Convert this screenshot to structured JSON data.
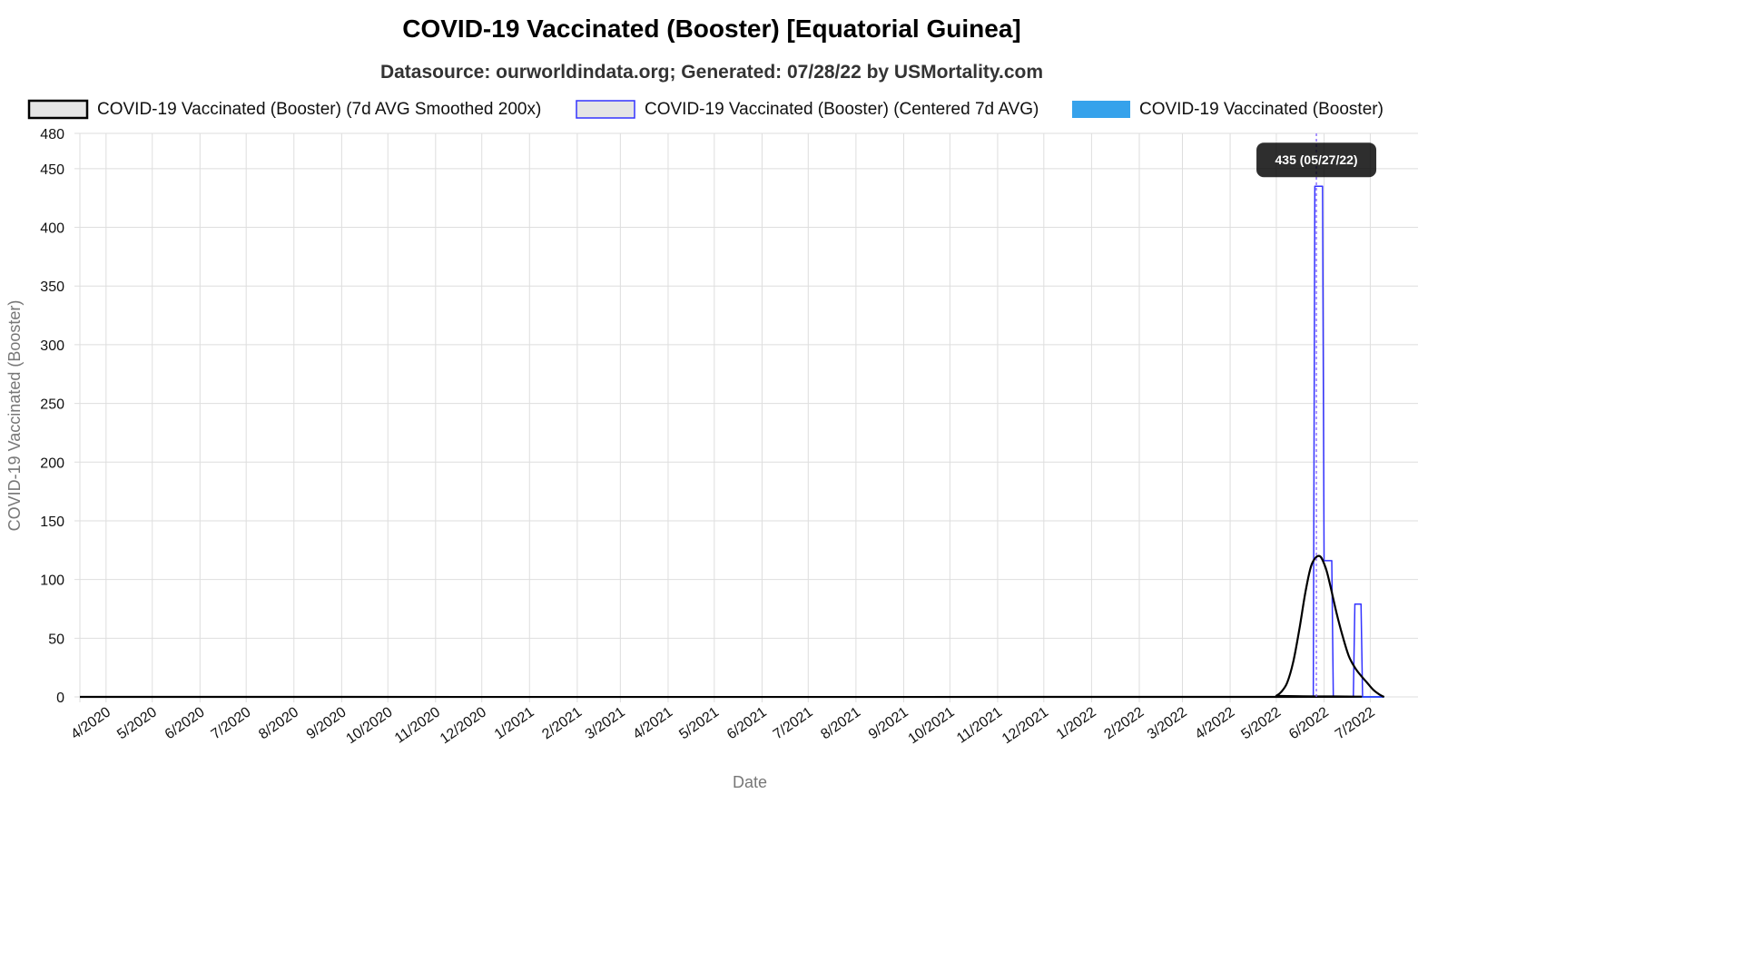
{
  "chart_data": {
    "type": "line",
    "title": "COVID-19 Vaccinated (Booster) [Equatorial Guinea]",
    "subtitle": "Datasource: ourworldindata.org; Generated: 07/28/22 by USMortality.com",
    "xlabel": "Date",
    "ylabel": "COVID-19 Vaccinated (Booster)",
    "ylim": [
      0,
      480
    ],
    "yticks": [
      0,
      50,
      100,
      150,
      200,
      250,
      300,
      350,
      400,
      450,
      480
    ],
    "xlim": [
      "2020-03-15",
      "2022-08-01"
    ],
    "xticks": [
      {
        "date": "2020-04-01",
        "label": "4/2020"
      },
      {
        "date": "2020-05-01",
        "label": "5/2020"
      },
      {
        "date": "2020-06-01",
        "label": "6/2020"
      },
      {
        "date": "2020-07-01",
        "label": "7/2020"
      },
      {
        "date": "2020-08-01",
        "label": "8/2020"
      },
      {
        "date": "2020-09-01",
        "label": "9/2020"
      },
      {
        "date": "2020-10-01",
        "label": "10/2020"
      },
      {
        "date": "2020-11-01",
        "label": "11/2020"
      },
      {
        "date": "2020-12-01",
        "label": "12/2020"
      },
      {
        "date": "2021-01-01",
        "label": "1/2021"
      },
      {
        "date": "2021-02-01",
        "label": "2/2021"
      },
      {
        "date": "2021-03-01",
        "label": "3/2021"
      },
      {
        "date": "2021-04-01",
        "label": "4/2021"
      },
      {
        "date": "2021-05-01",
        "label": "5/2021"
      },
      {
        "date": "2021-06-01",
        "label": "6/2021"
      },
      {
        "date": "2021-07-01",
        "label": "7/2021"
      },
      {
        "date": "2021-08-01",
        "label": "8/2021"
      },
      {
        "date": "2021-09-01",
        "label": "9/2021"
      },
      {
        "date": "2021-10-01",
        "label": "10/2021"
      },
      {
        "date": "2021-11-01",
        "label": "11/2021"
      },
      {
        "date": "2021-12-01",
        "label": "12/2021"
      },
      {
        "date": "2022-01-01",
        "label": "1/2022"
      },
      {
        "date": "2022-02-01",
        "label": "2/2022"
      },
      {
        "date": "2022-03-01",
        "label": "3/2022"
      },
      {
        "date": "2022-04-01",
        "label": "4/2022"
      },
      {
        "date": "2022-05-01",
        "label": "5/2022"
      },
      {
        "date": "2022-06-01",
        "label": "6/2022"
      },
      {
        "date": "2022-07-01",
        "label": "7/2022"
      }
    ],
    "legend_position": "top",
    "grid": true,
    "series": [
      {
        "name": "COVID-19 Vaccinated (Booster) (7d AVG Smoothed 200x)",
        "color": "#000000",
        "fill": "#e5e5e5",
        "shape": "smooth",
        "points": [
          [
            "2020-03-15",
            0
          ],
          [
            "2022-04-28",
            0
          ],
          [
            "2022-05-01",
            1
          ],
          [
            "2022-05-04",
            4
          ],
          [
            "2022-05-08",
            12
          ],
          [
            "2022-05-12",
            30
          ],
          [
            "2022-05-16",
            58
          ],
          [
            "2022-05-20",
            90
          ],
          [
            "2022-05-24",
            113
          ],
          [
            "2022-05-29",
            120
          ],
          [
            "2022-06-02",
            110
          ],
          [
            "2022-06-05",
            95
          ],
          [
            "2022-06-09",
            72
          ],
          [
            "2022-06-13",
            52
          ],
          [
            "2022-06-17",
            35
          ],
          [
            "2022-06-21",
            25
          ],
          [
            "2022-06-25",
            18
          ],
          [
            "2022-06-29",
            12
          ],
          [
            "2022-07-03",
            6
          ],
          [
            "2022-07-07",
            2
          ],
          [
            "2022-07-10",
            0
          ]
        ]
      },
      {
        "name": "COVID-19 Vaccinated (Booster) (Centered 7d AVG)",
        "color": "#3333ff",
        "fill": "#e5e5e5",
        "shape": "step",
        "points": [
          [
            "2020-03-15",
            0
          ],
          [
            "2022-05-25",
            0
          ],
          [
            "2022-05-26",
            435
          ],
          [
            "2022-05-31",
            435
          ],
          [
            "2022-06-01",
            116
          ],
          [
            "2022-06-06",
            116
          ],
          [
            "2022-06-07",
            0
          ],
          [
            "2022-06-20",
            0
          ],
          [
            "2022-06-21",
            79
          ],
          [
            "2022-06-25",
            79
          ],
          [
            "2022-06-26",
            0
          ],
          [
            "2022-07-10",
            0
          ]
        ]
      },
      {
        "name": "COVID-19 Vaccinated (Booster)",
        "color": "#36a2eb",
        "fill": "#36a2eb",
        "shape": "line",
        "points": [
          [
            "2020-03-15",
            0
          ],
          [
            "2022-07-10",
            0
          ]
        ]
      }
    ],
    "tooltip": {
      "text": "435 (05/27/22)",
      "date": "2022-05-27",
      "value": 435
    }
  }
}
